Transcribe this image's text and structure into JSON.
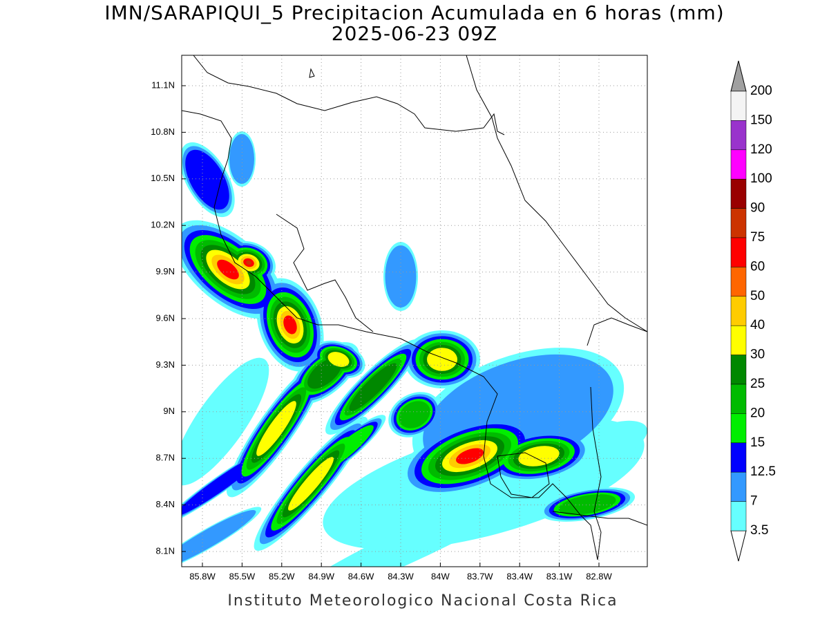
{
  "title": "IMN/SARAPIQUI_5 Precipitacion Acumulada en 6 horas (mm)",
  "subtitle": "2025-06-23 09Z",
  "lat_ticks": [
    "11.1N",
    "10.8N",
    "10.5N",
    "10.2N",
    "9.9N",
    "9.6N",
    "9.3N",
    "9N",
    "8.7N",
    "8.4N",
    "8.1N"
  ],
  "lon_ticks": [
    "85.8W",
    "85.5W",
    "85.2W",
    "84.9W",
    "84.6W",
    "84.3W",
    "84W",
    "83.7W",
    "83.4W",
    "83.1W",
    "82.8W"
  ],
  "colorbar": {
    "labels": [
      "200",
      "150",
      "120",
      "100",
      "90",
      "75",
      "60",
      "50",
      "40",
      "30",
      "25",
      "20",
      "15",
      "12.5",
      "7",
      "3.5"
    ],
    "colors": [
      "#f4f4f4",
      "#9933cc",
      "#ff00ff",
      "#990000",
      "#cc3300",
      "#ff0000",
      "#ff6600",
      "#ffcc00",
      "#ffff00",
      "#008800",
      "#00bb00",
      "#00ee00",
      "#0000ff",
      "#3399ff",
      "#66ffff"
    ],
    "over_color": "#a0a0a0",
    "under_color": "#ffffff"
  },
  "footer": "Instituto Meteorologico Nacional Costa Rica"
}
